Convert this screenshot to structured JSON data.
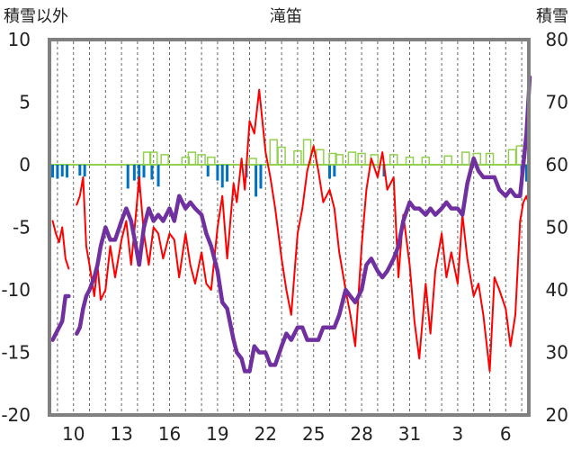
{
  "chart_data": {
    "type": "line",
    "title": "滝笛",
    "left_axis_label": "積雪以外",
    "right_axis_label": "積雪",
    "left_ticks": [
      "10",
      "5",
      "0",
      "-5",
      "-10",
      "-15",
      "-20"
    ],
    "right_ticks": [
      "80",
      "70",
      "60",
      "50",
      "40",
      "30",
      "20"
    ],
    "x_tick_labels": [
      "10",
      "13",
      "16",
      "19",
      "22",
      "25",
      "28",
      "31",
      "3",
      "6"
    ],
    "left_ylim": [
      -20,
      10
    ],
    "right_ylim": [
      20,
      80
    ],
    "grid": "dashed vertical (daily)",
    "colors": {
      "temperature": "#ff0000",
      "snow_depth": "#7030a0",
      "green_series": "#92d050",
      "blue_series": "#0070c0",
      "grid": "#666666",
      "frame": "#808080"
    },
    "x_days": [
      8.7,
      8.9,
      9.1,
      9.3,
      9.5,
      9.7,
      10.0,
      10.2,
      10.4,
      10.6,
      10.8,
      11.0,
      11.3,
      11.5,
      11.7,
      12.0,
      12.3,
      12.6,
      13.0,
      13.3,
      13.6,
      13.9,
      14.1,
      14.4,
      14.7,
      15.0,
      15.3,
      15.6,
      16.0,
      16.3,
      16.6,
      17.0,
      17.3,
      17.6,
      18.0,
      18.3,
      18.6,
      19.0,
      19.3,
      19.6,
      20.0,
      20.2,
      20.5,
      20.7,
      21.0,
      21.3,
      21.6,
      22.0,
      22.3,
      22.6,
      23.0,
      23.3,
      23.6,
      24.0,
      24.3,
      24.6,
      25.0,
      25.3,
      25.6,
      26.0,
      26.3,
      26.6,
      27.0,
      27.3,
      27.6,
      28.0,
      28.3,
      28.6,
      29.0,
      29.3,
      29.6,
      30.0,
      30.3,
      30.6,
      31.0,
      31.3,
      31.6,
      32.0,
      32.3,
      32.6,
      33.0,
      33.3,
      33.6,
      34.0,
      34.3,
      34.6,
      35.0,
      35.3,
      35.6,
      36.0,
      36.3,
      36.6,
      37.0,
      37.3,
      37.6,
      37.9,
      38.1,
      38.3,
      38.5
    ],
    "series": [
      {
        "axis": "left",
        "values": [
          -4.5,
          -5.5,
          -6.2,
          -5.0,
          -7.5,
          -8.3,
          null,
          -3.2,
          -2.5,
          -1.0,
          -6.5,
          -8.0,
          -10.5,
          -8.0,
          -10.8,
          -10.0,
          -6.5,
          -9.0,
          -6.0,
          -4.5,
          -8.0,
          -4.0,
          -1.0,
          -5.5,
          -8.0,
          -5.0,
          -5.5,
          -7.5,
          -5.5,
          -6.0,
          -9.0,
          -5.5,
          -8.0,
          -9.5,
          -7.0,
          -9.5,
          -10.0,
          -5.0,
          -2.5,
          -7.5,
          -1.5,
          -3.0,
          0.5,
          -2.0,
          3.5,
          2.5,
          6.0,
          1.0,
          -1.0,
          -3.5,
          -7.5,
          -10.0,
          -12.0,
          -5.5,
          -3.5,
          -0.5,
          1.5,
          -0.5,
          -3.0,
          -2.0,
          -3.5,
          -7.0,
          -10.0,
          -12.0,
          -14.5,
          -6.5,
          -2.0,
          0.5,
          -1.0,
          1.0,
          -2.0,
          -1.0,
          -9.0,
          -4.0,
          -8.0,
          -12.5,
          -15.5,
          -9.5,
          -13.5,
          -8.5,
          -5.5,
          -9.0,
          -7.0,
          -9.5,
          -4.0,
          -7.5,
          -10.5,
          -9.5,
          -12.0,
          -16.5,
          -9.0,
          -10.0,
          -11.5,
          -14.5,
          -12.0,
          -4.5,
          -3.0,
          -2.5,
          -3.5
        ]
      },
      {
        "axis": "right",
        "values": [
          32,
          33,
          34,
          35,
          39,
          39,
          null,
          33,
          34,
          37,
          39,
          40,
          42,
          44,
          47,
          50,
          48,
          48,
          51,
          53,
          51,
          47,
          44,
          50,
          53,
          51,
          52,
          51,
          53,
          51,
          55,
          53,
          54,
          53,
          52,
          49,
          47,
          43,
          38,
          37,
          32,
          30,
          29,
          27,
          27,
          31,
          30,
          30,
          28,
          28,
          31,
          33,
          32,
          34,
          34,
          32,
          32,
          32,
          34,
          34,
          34,
          36,
          40,
          39,
          38,
          40,
          44,
          45,
          43,
          42,
          43,
          45,
          47,
          51,
          54,
          53,
          53,
          52,
          53,
          52,
          53,
          54,
          53,
          53,
          52,
          57,
          61,
          59,
          58,
          58,
          58,
          56,
          55,
          56,
          55,
          55,
          60,
          65,
          74
        ]
      }
    ]
  }
}
